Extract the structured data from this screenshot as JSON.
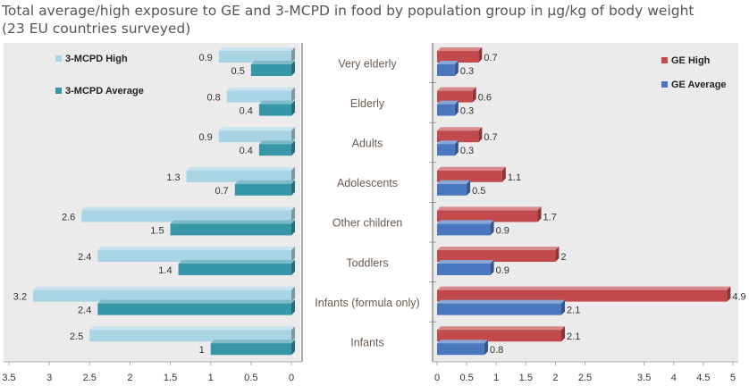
{
  "title_line1": "Total average/high exposure to GE and 3-MCPD in food by population group in µg/kg of body weight",
  "title_line2": "(23 EU countries surveyed)",
  "chart_data": {
    "type": "bar",
    "orientation": "horizontal",
    "categories": [
      "Very elderly",
      "Elderly",
      "Adults",
      "Adolescents",
      "Other children",
      "Toddlers",
      "Infants (formula only)",
      "Infants"
    ],
    "panels": [
      {
        "id": "mcpd",
        "direction": "reversed",
        "xlim": [
          0,
          3.5
        ],
        "ticks": [
          3.5,
          3,
          2.5,
          2,
          1.5,
          1,
          0.5,
          0
        ],
        "tick_labels": [
          "3.5",
          "3",
          "2.5",
          "2",
          "1.5",
          "1",
          "0.5",
          "0"
        ],
        "legend_position": "top-left",
        "series": [
          {
            "name": "3-MCPD High",
            "color": "#a9d4e4",
            "values": [
              0.9,
              0.8,
              0.9,
              1.3,
              2.6,
              2.4,
              3.2,
              2.5
            ],
            "labels": [
              "0.9",
              "0.8",
              "0.9",
              "1.3",
              "2.6",
              "2.4",
              "3.2",
              "2.5"
            ]
          },
          {
            "name": "3-MCPD Average",
            "color": "#3797a9",
            "values": [
              0.5,
              0.4,
              0.4,
              0.7,
              1.5,
              1.4,
              2.4,
              1
            ],
            "labels": [
              "0.5",
              "0.4",
              "0.4",
              "0.7",
              "1.5",
              "1.4",
              "2.4",
              "1"
            ]
          }
        ]
      },
      {
        "id": "ge",
        "direction": "normal",
        "xlim": [
          0,
          5
        ],
        "ticks": [
          0,
          0.5,
          1,
          1.5,
          2,
          2.5,
          3.5,
          4,
          4.5,
          5
        ],
        "tick_labels": [
          "0",
          "0.5",
          "1",
          "1.5",
          "2",
          "2.5",
          "3.5",
          "4",
          "4.5",
          "5"
        ],
        "legend_position": "top-right",
        "series": [
          {
            "name": "GE High",
            "color": "#c24a4c",
            "values": [
              0.7,
              0.6,
              0.7,
              1.1,
              1.7,
              2,
              4.9,
              2.1
            ],
            "labels": [
              "0.7",
              "0.6",
              "0.7",
              "1.1",
              "1.7",
              "2",
              "4.9",
              "2.1"
            ]
          },
          {
            "name": "GE Average",
            "color": "#4a78c0",
            "values": [
              0.3,
              0.3,
              0.3,
              0.5,
              0.9,
              0.9,
              2.1,
              0.8
            ],
            "labels": [
              "0.3",
              "0.3",
              "0.3",
              "0.5",
              "0.9",
              "0.9",
              "2.1",
              "0.8"
            ]
          }
        ]
      }
    ]
  }
}
